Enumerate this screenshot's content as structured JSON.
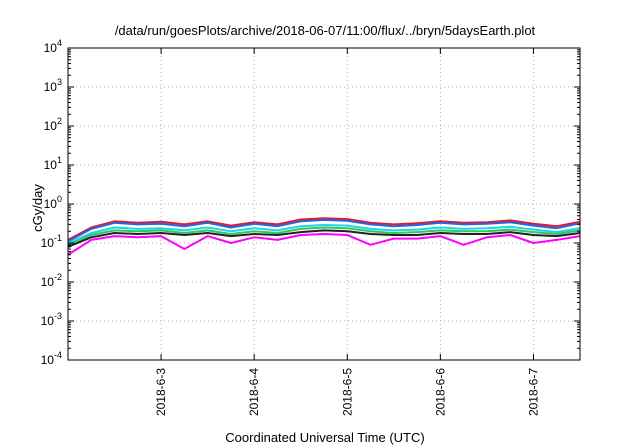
{
  "chart_data": {
    "type": "line",
    "title": "/data/run/goesPlots/archive/2018-06-07/11:00/flux/../bryn/5daysEarth.plot",
    "xlabel": "Coordinated Universal Time (UTC)",
    "ylabel": "cGy/day",
    "yscale": "log",
    "ylim": [
      0.0001,
      10000
    ],
    "xlim": [
      "2018-06-02 00:00",
      "2018-06-07 12:00"
    ],
    "grid": true,
    "legend": "none",
    "y_ticks": [
      {
        "base": "10",
        "exp": "-4"
      },
      {
        "base": "10",
        "exp": "-3"
      },
      {
        "base": "10",
        "exp": "-2"
      },
      {
        "base": "10",
        "exp": "-1"
      },
      {
        "base": "10",
        "exp": "0"
      },
      {
        "base": "10",
        "exp": "1"
      },
      {
        "base": "10",
        "exp": "2"
      },
      {
        "base": "10",
        "exp": "3"
      },
      {
        "base": "10",
        "exp": "4"
      }
    ],
    "x_ticks": [
      "2018-6-3",
      "2018-6-4",
      "2018-6-5",
      "2018-6-6",
      "2018-6-7"
    ],
    "x": [
      "2018-06-02 00:00",
      "2018-06-02 06:00",
      "2018-06-02 12:00",
      "2018-06-02 18:00",
      "2018-06-03 00:00",
      "2018-06-03 06:00",
      "2018-06-03 12:00",
      "2018-06-03 18:00",
      "2018-06-04 00:00",
      "2018-06-04 06:00",
      "2018-06-04 12:00",
      "2018-06-04 18:00",
      "2018-06-05 00:00",
      "2018-06-05 06:00",
      "2018-06-05 12:00",
      "2018-06-05 18:00",
      "2018-06-06 00:00",
      "2018-06-06 06:00",
      "2018-06-06 12:00",
      "2018-06-06 18:00",
      "2018-06-07 00:00",
      "2018-06-07 06:00",
      "2018-06-07 12:00"
    ],
    "series": [
      {
        "color": "#e8172f",
        "values": [
          0.12,
          0.25,
          0.36,
          0.33,
          0.35,
          0.3,
          0.36,
          0.28,
          0.34,
          0.3,
          0.4,
          0.43,
          0.41,
          0.33,
          0.3,
          0.32,
          0.36,
          0.33,
          0.34,
          0.38,
          0.31,
          0.27,
          0.35
        ]
      },
      {
        "color": "#2266dd",
        "values": [
          0.11,
          0.23,
          0.33,
          0.3,
          0.31,
          0.27,
          0.33,
          0.25,
          0.31,
          0.27,
          0.36,
          0.39,
          0.37,
          0.3,
          0.27,
          0.29,
          0.33,
          0.3,
          0.31,
          0.34,
          0.28,
          0.24,
          0.32
        ]
      },
      {
        "color": "#1dd6e8",
        "values": [
          0.1,
          0.18,
          0.25,
          0.23,
          0.24,
          0.21,
          0.25,
          0.2,
          0.24,
          0.21,
          0.27,
          0.29,
          0.28,
          0.23,
          0.21,
          0.22,
          0.25,
          0.23,
          0.24,
          0.26,
          0.22,
          0.19,
          0.24
        ]
      },
      {
        "color": "#33c55e",
        "values": [
          0.09,
          0.16,
          0.21,
          0.2,
          0.21,
          0.18,
          0.21,
          0.17,
          0.2,
          0.18,
          0.23,
          0.25,
          0.24,
          0.2,
          0.18,
          0.19,
          0.21,
          0.2,
          0.2,
          0.22,
          0.19,
          0.17,
          0.21
        ]
      },
      {
        "color": "#222222",
        "values": [
          0.08,
          0.14,
          0.18,
          0.17,
          0.18,
          0.16,
          0.18,
          0.15,
          0.17,
          0.16,
          0.19,
          0.21,
          0.2,
          0.17,
          0.16,
          0.16,
          0.18,
          0.17,
          0.17,
          0.19,
          0.16,
          0.15,
          0.18
        ]
      },
      {
        "color": "#ff00ff",
        "values": [
          0.05,
          0.12,
          0.15,
          0.14,
          0.15,
          0.07,
          0.15,
          0.1,
          0.14,
          0.12,
          0.16,
          0.17,
          0.16,
          0.09,
          0.13,
          0.13,
          0.15,
          0.09,
          0.14,
          0.16,
          0.1,
          0.12,
          0.15
        ]
      }
    ]
  }
}
